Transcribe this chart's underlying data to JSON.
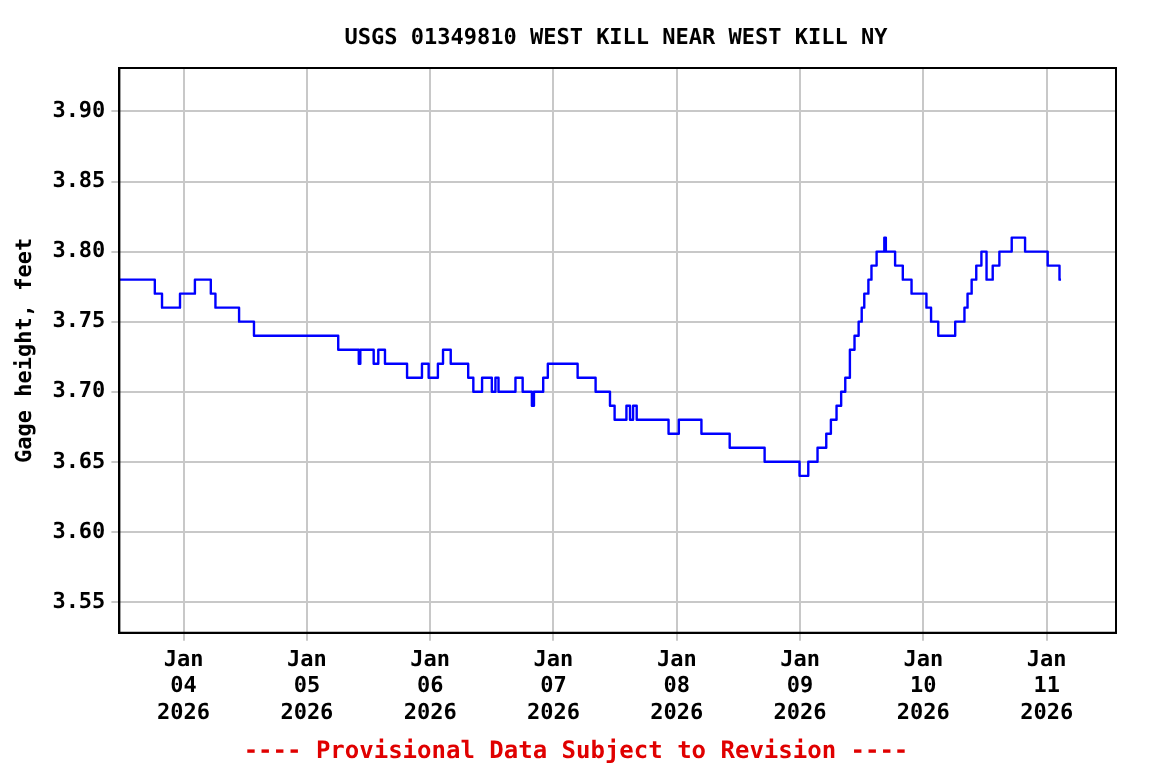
{
  "chart_data": {
    "type": "step",
    "title": "USGS 01349810 WEST KILL NEAR WEST KILL NY",
    "ylabel": "Gage height, feet",
    "annotations": [
      "---- Provisional Data Subject to Revision ----"
    ],
    "xlim": [
      "2026-01-03T11:30",
      "2026-01-11T13:30"
    ],
    "xticks": [
      {
        "value": "2026-01-04",
        "label": "Jan\n04\n2026"
      },
      {
        "value": "2026-01-05",
        "label": "Jan\n05\n2026"
      },
      {
        "value": "2026-01-06",
        "label": "Jan\n06\n2026"
      },
      {
        "value": "2026-01-07",
        "label": "Jan\n07\n2026"
      },
      {
        "value": "2026-01-08",
        "label": "Jan\n08\n2026"
      },
      {
        "value": "2026-01-09",
        "label": "Jan\n09\n2026"
      },
      {
        "value": "2026-01-10",
        "label": "Jan\n10\n2026"
      },
      {
        "value": "2026-01-11",
        "label": "Jan\n11\n2026"
      }
    ],
    "ylim": [
      3.528,
      3.931
    ],
    "yticks": [
      {
        "value": 3.55,
        "label": "3.55"
      },
      {
        "value": 3.6,
        "label": "3.60"
      },
      {
        "value": 3.65,
        "label": "3.65"
      },
      {
        "value": 3.7,
        "label": "3.70"
      },
      {
        "value": 3.75,
        "label": "3.75"
      },
      {
        "value": 3.8,
        "label": "3.80"
      },
      {
        "value": 3.85,
        "label": "3.85"
      },
      {
        "value": 3.9,
        "label": "3.90"
      }
    ],
    "grid": true,
    "legend": false,
    "marker": "none",
    "line_style": "solid",
    "series": [
      {
        "color": "#0000ff",
        "x": [
          "2026-01-03T11:36",
          "2026-01-03T18:24",
          "2026-01-03T19:48",
          "2026-01-03T23:18",
          "2026-01-04T02:12",
          "2026-01-04T05:18",
          "2026-01-04T06:12",
          "2026-01-04T10:48",
          "2026-01-04T13:42",
          "2026-01-05T06:06",
          "2026-01-05T10:06",
          "2026-01-05T10:24",
          "2026-01-05T12:06",
          "2026-01-05T13:00",
          "2026-01-05T13:54",
          "2026-01-05T15:12",
          "2026-01-05T19:30",
          "2026-01-05T22:24",
          "2026-01-05T23:42",
          "2026-01-06T01:30",
          "2026-01-06T02:30",
          "2026-01-06T04:00",
          "2026-01-06T07:24",
          "2026-01-06T08:24",
          "2026-01-06T10:06",
          "2026-01-06T12:00",
          "2026-01-06T12:42",
          "2026-01-06T13:18",
          "2026-01-06T16:36",
          "2026-01-06T18:00",
          "2026-01-06T19:48",
          "2026-01-06T20:12",
          "2026-01-06T20:54",
          "2026-01-06T22:00",
          "2026-01-06T22:54",
          "2026-01-07T04:42",
          "2026-01-07T08:12",
          "2026-01-07T11:00",
          "2026-01-07T11:54",
          "2026-01-07T14:12",
          "2026-01-07T14:54",
          "2026-01-07T15:30",
          "2026-01-07T16:12",
          "2026-01-07T22:24",
          "2026-01-08T00:24",
          "2026-01-08T04:48",
          "2026-01-08T10:18",
          "2026-01-08T17:06",
          "2026-01-08T23:54",
          "2026-01-09T01:36",
          "2026-01-09T03:24",
          "2026-01-09T05:06",
          "2026-01-09T06:00",
          "2026-01-09T07:06",
          "2026-01-09T08:00",
          "2026-01-09T08:48",
          "2026-01-09T09:42",
          "2026-01-09T10:36",
          "2026-01-09T11:24",
          "2026-01-09T12:00",
          "2026-01-09T12:30",
          "2026-01-09T13:18",
          "2026-01-09T13:54",
          "2026-01-09T14:54",
          "2026-01-09T16:24",
          "2026-01-09T16:42",
          "2026-01-09T18:30",
          "2026-01-09T20:00",
          "2026-01-09T21:42",
          "2026-01-10T00:36",
          "2026-01-10T01:30",
          "2026-01-10T02:54",
          "2026-01-10T06:12",
          "2026-01-10T08:00",
          "2026-01-10T08:36",
          "2026-01-10T09:24",
          "2026-01-10T10:18",
          "2026-01-10T11:18",
          "2026-01-10T12:18",
          "2026-01-10T13:30",
          "2026-01-10T14:48",
          "2026-01-10T17:12",
          "2026-01-10T19:48",
          "2026-01-11T00:12",
          "2026-01-11T02:30",
          "2026-01-11T02:48"
        ],
        "values": [
          3.78,
          3.77,
          3.76,
          3.77,
          3.78,
          3.77,
          3.76,
          3.75,
          3.74,
          3.73,
          3.72,
          3.73,
          3.73,
          3.72,
          3.73,
          3.72,
          3.71,
          3.72,
          3.71,
          3.72,
          3.73,
          3.72,
          3.71,
          3.7,
          3.71,
          3.7,
          3.71,
          3.7,
          3.71,
          3.7,
          3.69,
          3.7,
          3.7,
          3.71,
          3.72,
          3.71,
          3.7,
          3.69,
          3.68,
          3.69,
          3.68,
          3.69,
          3.68,
          3.67,
          3.68,
          3.67,
          3.66,
          3.65,
          3.64,
          3.65,
          3.66,
          3.67,
          3.68,
          3.69,
          3.7,
          3.71,
          3.73,
          3.74,
          3.75,
          3.76,
          3.77,
          3.78,
          3.79,
          3.8,
          3.81,
          3.8,
          3.79,
          3.78,
          3.77,
          3.76,
          3.75,
          3.74,
          3.75,
          3.76,
          3.77,
          3.78,
          3.79,
          3.8,
          3.78,
          3.79,
          3.8,
          3.81,
          3.8,
          3.79,
          3.78,
          3.78
        ]
      }
    ]
  }
}
